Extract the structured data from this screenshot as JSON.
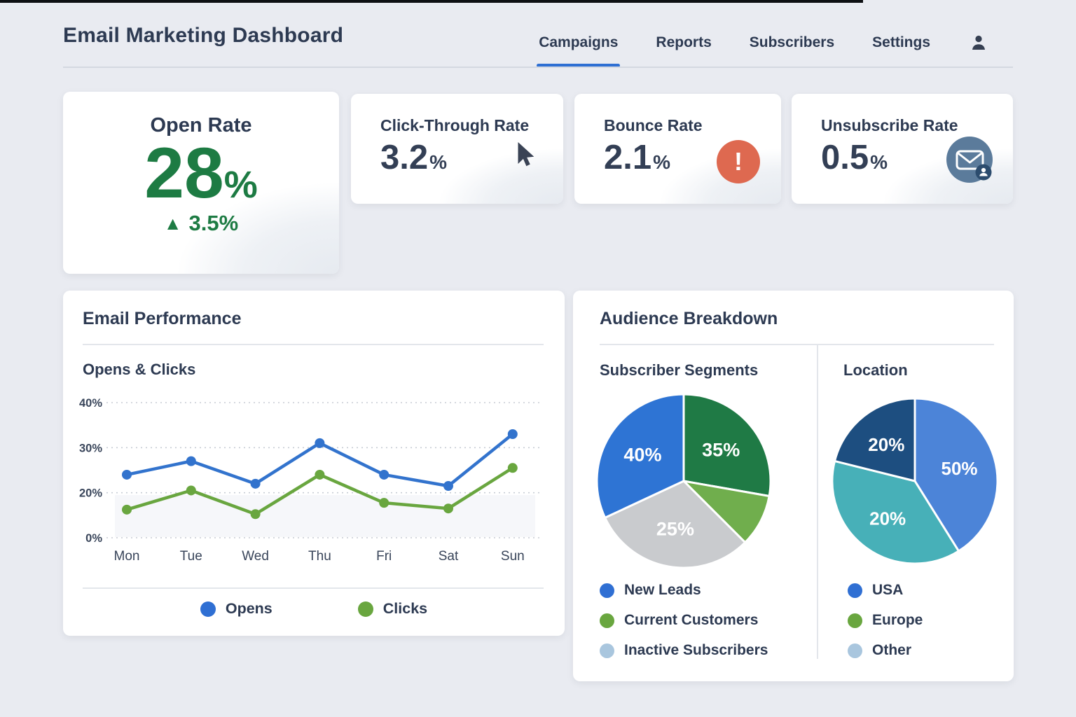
{
  "page": {
    "background": "#e9ebf1",
    "top_strip_color": "#0e1013"
  },
  "header": {
    "title": "Email Marketing Dashboard",
    "nav": [
      {
        "label": "Campaigns",
        "active": true
      },
      {
        "label": "Reports",
        "active": false
      },
      {
        "label": "Subscribers",
        "active": false
      },
      {
        "label": "Settings",
        "active": false
      }
    ],
    "user_icon": "user-icon",
    "active_underline_color": "#2e6fd3"
  },
  "stat_cards": [
    {
      "title": "Open Rate",
      "value": "28",
      "unit": "%",
      "delta_arrow": "▲",
      "delta": "3.5%",
      "value_color": "#1d7b43"
    },
    {
      "title": "Click-Through Rate",
      "value": "3.2",
      "unit": "%",
      "icon": "cursor-icon"
    },
    {
      "title": "Bounce Rate",
      "value": "2.1",
      "unit": "%",
      "icon": "warning-icon",
      "icon_glyph": "!",
      "icon_bg": "#de6950"
    },
    {
      "title": "Unsubscribe Rate",
      "value": "0.5",
      "unit": "%",
      "icon": "unsubscribe-envelope-icon",
      "icon_bg": "#5b7b9b"
    }
  ],
  "email_performance": {
    "title": "Email Performance",
    "subtitle": "Opens & Clicks",
    "legend": [
      {
        "label": "Opens",
        "color": "#2f6fd3"
      },
      {
        "label": "Clicks",
        "color": "#69a63f"
      }
    ]
  },
  "audience": {
    "title": "Audience Breakdown",
    "sections": [
      {
        "title": "Subscriber Segments",
        "legend": [
          {
            "label": "New Leads",
            "color": "#2f6fd3"
          },
          {
            "label": "Current Customers",
            "color": "#69a63f"
          },
          {
            "label": "Inactive Subscribers",
            "color": "#a9c6de"
          }
        ]
      },
      {
        "title": "Location",
        "legend": [
          {
            "label": "USA",
            "color": "#2f6fd3"
          },
          {
            "label": "Europe",
            "color": "#69a63f"
          },
          {
            "label": "Other",
            "color": "#a9c6de"
          }
        ]
      }
    ]
  },
  "chart_data": [
    {
      "type": "line",
      "title": "Opens & Clicks",
      "x": [
        "Mon",
        "Tue",
        "Wed",
        "Thu",
        "Fri",
        "Sat",
        "Sun"
      ],
      "series": [
        {
          "name": "Opens",
          "color": "#3273cd",
          "values": [
            24,
            27,
            22,
            31,
            24,
            21.5,
            33
          ]
        },
        {
          "name": "Clicks",
          "color": "#69a63f",
          "values": [
            12.5,
            20.5,
            10.5,
            24,
            15.5,
            13,
            25.5
          ]
        }
      ],
      "xlabel": "",
      "ylabel": "",
      "ytick_labels": [
        "40%",
        "30%",
        "20%",
        "0%"
      ],
      "ytick_values": [
        40,
        30,
        20,
        0
      ],
      "grid": "horizontal-dotted",
      "legend_position": "bottom",
      "note": "y ticks evenly spaced as labeled; no 10% tick shown"
    },
    {
      "type": "pie",
      "title": "Subscriber Segments",
      "slices": [
        {
          "label": "Current Customers",
          "display": "35%",
          "value": 35,
          "color": "#1f7a45",
          "start_deg": 0,
          "end_deg": 100
        },
        {
          "label": "",
          "display": "",
          "value": null,
          "color": "#70ae4d",
          "start_deg": 100,
          "end_deg": 135
        },
        {
          "label": "Inactive Subscribers",
          "display": "25%",
          "value": 25,
          "color": "#c9cbce",
          "start_deg": 135,
          "end_deg": 245
        },
        {
          "label": "New Leads",
          "display": "40%",
          "value": 40,
          "color": "#2e74d4",
          "start_deg": 245,
          "end_deg": 360
        }
      ]
    },
    {
      "type": "pie",
      "title": "Location",
      "slices": [
        {
          "label": "USA",
          "display": "50%",
          "value": 50,
          "color": "#4c84d8",
          "start_deg": 0,
          "end_deg": 148
        },
        {
          "label": "Europe",
          "display": "20%",
          "value": 20,
          "color": "#47b0b8",
          "start_deg": 148,
          "end_deg": 284
        },
        {
          "label": "Other",
          "display": "20%",
          "value": 20,
          "color": "#1d4e80",
          "start_deg": 284,
          "end_deg": 360
        }
      ]
    }
  ]
}
